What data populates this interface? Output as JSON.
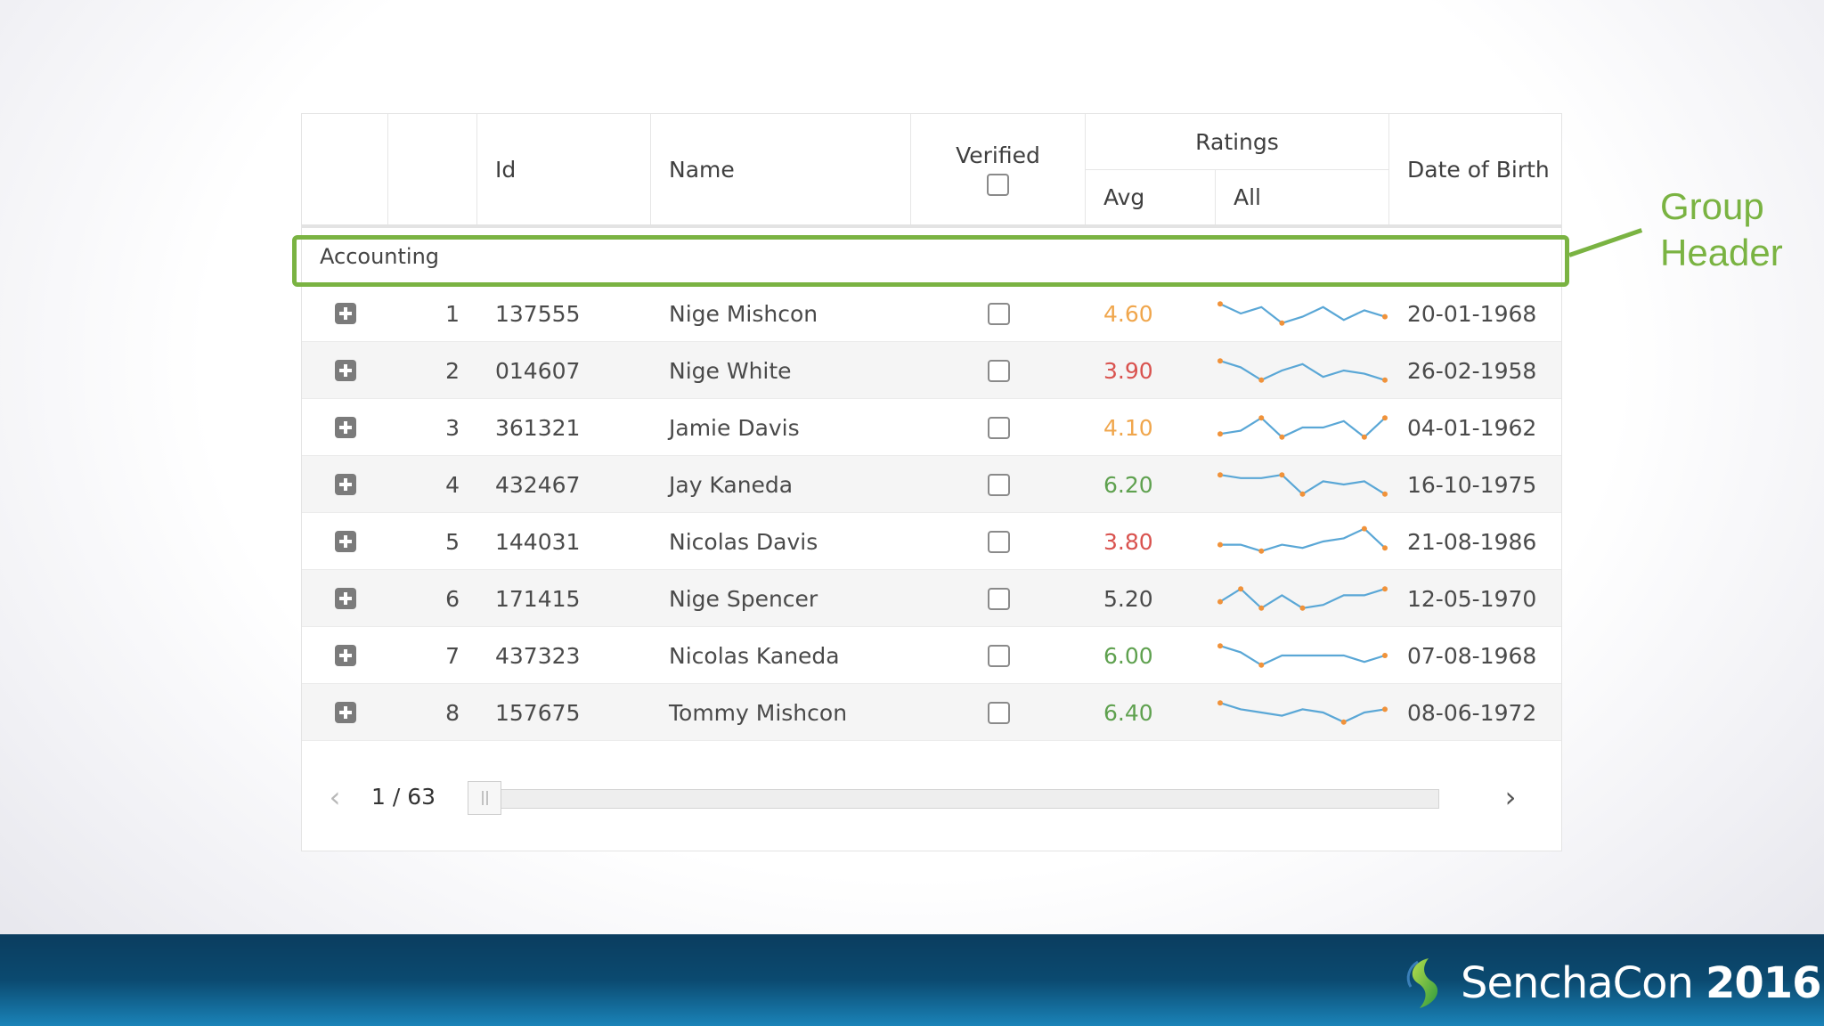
{
  "columns": {
    "id": "Id",
    "name": "Name",
    "verified": "Verified",
    "ratings": "Ratings",
    "avg": "Avg",
    "all": "All",
    "dob": "Date of Birth"
  },
  "group": {
    "label": "Accounting"
  },
  "rows": [
    {
      "num": "1",
      "id": "137555",
      "name": "Nige Mishcon",
      "verified": false,
      "avg": "4.60",
      "avg_color": "#f0a64c",
      "dob": "20-01-1968",
      "spark": [
        8,
        5,
        7,
        2,
        4,
        7,
        3,
        6,
        4
      ]
    },
    {
      "num": "2",
      "id": "014607",
      "name": "Nige White",
      "verified": false,
      "avg": "3.90",
      "avg_color": "#d9534f",
      "dob": "26-02-1958",
      "spark": [
        8,
        6,
        2,
        5,
        7,
        3,
        5,
        4,
        2
      ]
    },
    {
      "num": "3",
      "id": "361321",
      "name": "Jamie Davis",
      "verified": false,
      "avg": "4.10",
      "avg_color": "#f0a64c",
      "dob": "04-01-1962",
      "spark": [
        3,
        4,
        8,
        2,
        5,
        5,
        7,
        2,
        8
      ]
    },
    {
      "num": "4",
      "id": "432467",
      "name": "Jay Kaneda",
      "verified": false,
      "avg": "6.20",
      "avg_color": "#5fa14f",
      "dob": "16-10-1975",
      "spark": [
        8,
        7,
        7,
        8,
        2,
        6,
        5,
        6,
        2
      ]
    },
    {
      "num": "5",
      "id": "144031",
      "name": "Nicolas Davis",
      "verified": false,
      "avg": "3.80",
      "avg_color": "#d9534f",
      "dob": "21-08-1986",
      "spark": [
        4,
        4,
        2,
        4,
        3,
        5,
        6,
        9,
        3
      ]
    },
    {
      "num": "6",
      "id": "171415",
      "name": "Nige Spencer",
      "verified": false,
      "avg": "5.20",
      "avg_color": "#4a4a4a",
      "dob": "12-05-1970",
      "spark": [
        4,
        8,
        2,
        6,
        2,
        3,
        6,
        6,
        8
      ]
    },
    {
      "num": "7",
      "id": "437323",
      "name": "Nicolas Kaneda",
      "verified": false,
      "avg": "6.00",
      "avg_color": "#5fa14f",
      "dob": "07-08-1968",
      "spark": [
        8,
        6,
        2,
        5,
        5,
        5,
        5,
        3,
        5
      ]
    },
    {
      "num": "8",
      "id": "157675",
      "name": "Tommy Mishcon",
      "verified": false,
      "avg": "6.40",
      "avg_color": "#5fa14f",
      "dob": "08-06-1972",
      "spark": [
        8,
        6,
        5,
        4,
        6,
        5,
        2,
        5,
        6
      ]
    }
  ],
  "pager": {
    "prev_icon": "chevron-left-icon",
    "count": "1 / 63",
    "next_icon": "chevron-right-icon",
    "position": 0.0159
  },
  "callout": {
    "line1": "Group",
    "line2": "Header"
  },
  "footer": {
    "brand_light": "SenchaCon",
    "brand_bold": "2016"
  },
  "colors": {
    "highlight": "#7ab342",
    "spark_line": "#5aa7d6",
    "spark_dot": "#f0923a"
  }
}
